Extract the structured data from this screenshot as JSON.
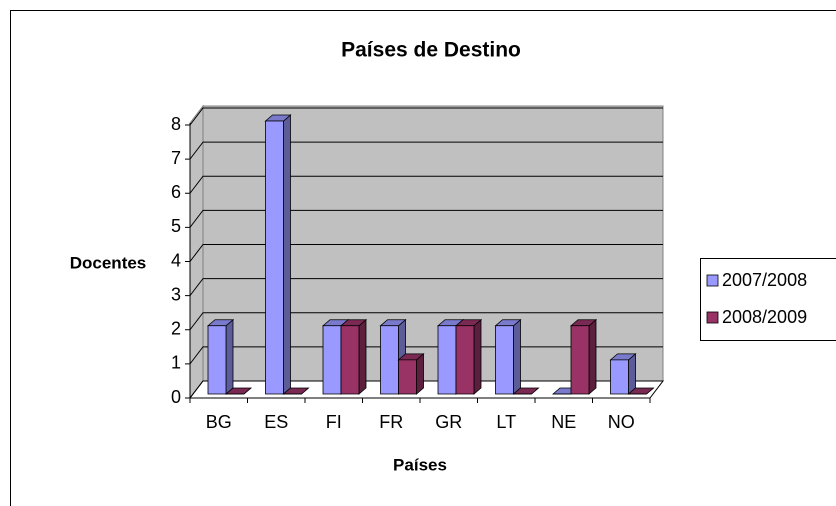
{
  "chart_data": {
    "type": "bar",
    "title": "Países de Destino",
    "x_label": "Países",
    "y_label": "Docentes",
    "categories": [
      "BG",
      "ES",
      "FI",
      "FR",
      "GR",
      "LT",
      "NE",
      "NO"
    ],
    "series": [
      {
        "name": "2007/2008",
        "color": "#9999ff",
        "values": [
          2,
          8,
          2,
          2,
          2,
          2,
          0,
          1
        ]
      },
      {
        "name": "2008/2009",
        "color": "#993366",
        "values": [
          0,
          0,
          2,
          1,
          2,
          0,
          2,
          0
        ]
      }
    ],
    "ylim": [
      0,
      8
    ],
    "yticks": [
      0,
      1,
      2,
      3,
      4,
      5,
      6,
      7,
      8
    ],
    "grid": true,
    "legend": "right"
  }
}
